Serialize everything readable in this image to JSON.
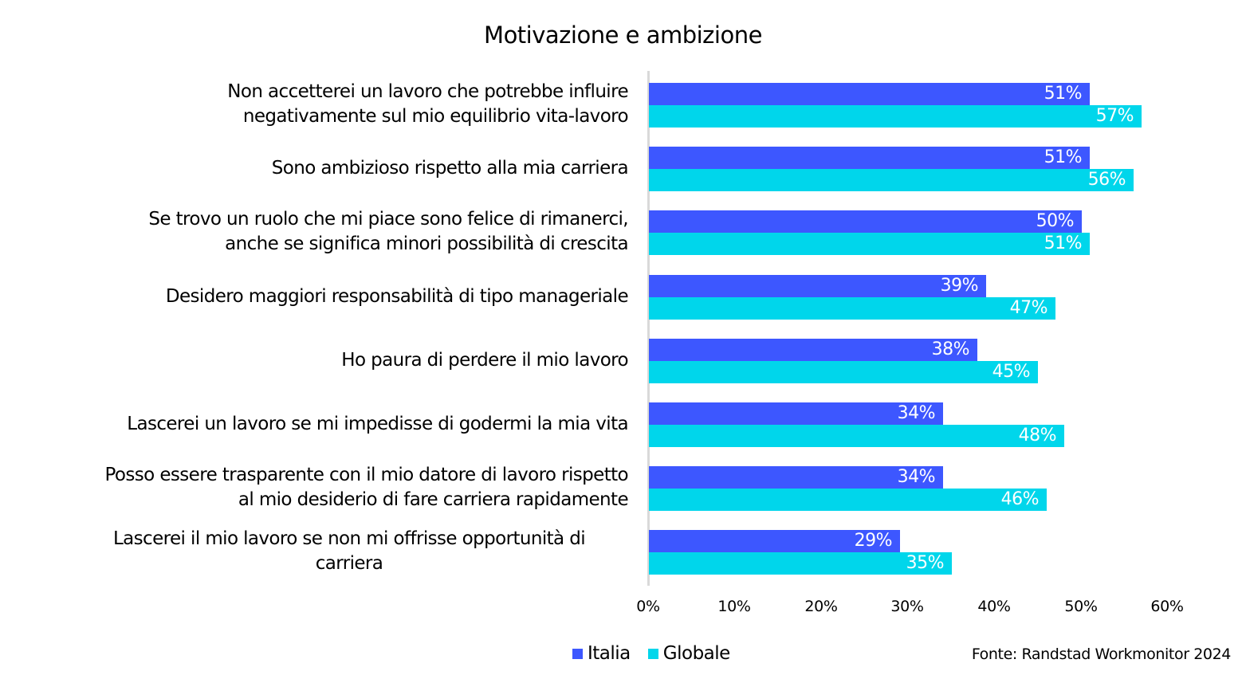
{
  "chart_data": {
    "type": "bar",
    "orientation": "horizontal",
    "title": "Motivazione e ambizione",
    "xlabel": "",
    "ylabel": "",
    "xlim": [
      0,
      60
    ],
    "x_ticks": [
      "0%",
      "10%",
      "20%",
      "30%",
      "40%",
      "50%",
      "60%"
    ],
    "grid": false,
    "legend_position": "bottom",
    "categories": [
      "Non accetterei un lavoro che potrebbe influire\nnegativamente sul mio equilibrio vita-lavoro",
      "Sono ambizioso rispetto alla mia carriera",
      "Se trovo un ruolo che mi piace sono felice di rimanerci,\nanche se significa minori possibilità di crescita",
      "Desidero maggiori responsabilità di tipo manageriale",
      "Ho paura di perdere il mio lavoro",
      "Lascerei un lavoro se mi impedisse di godermi la mia vita",
      "Posso essere trasparente con il mio datore di lavoro rispetto\nal mio desiderio di fare carriera rapidamente",
      "Lascerei il mio lavoro se non mi offrisse opportunità di\ncarriera"
    ],
    "series": [
      {
        "name": "Italia",
        "color": "#3d57ff",
        "values": [
          51,
          51,
          50,
          39,
          38,
          34,
          34,
          29
        ],
        "labels": [
          "51%",
          "51%",
          "50%",
          "39%",
          "38%",
          "34%",
          "34%",
          "29%"
        ]
      },
      {
        "name": "Globale",
        "color": "#00d6eb",
        "values": [
          57,
          56,
          51,
          47,
          45,
          48,
          46,
          35
        ],
        "labels": [
          "57%",
          "56%",
          "51%",
          "47%",
          "45%",
          "48%",
          "46%",
          "35%"
        ]
      }
    ],
    "source": "Fonte: Randstad Workmonitor 2024"
  }
}
